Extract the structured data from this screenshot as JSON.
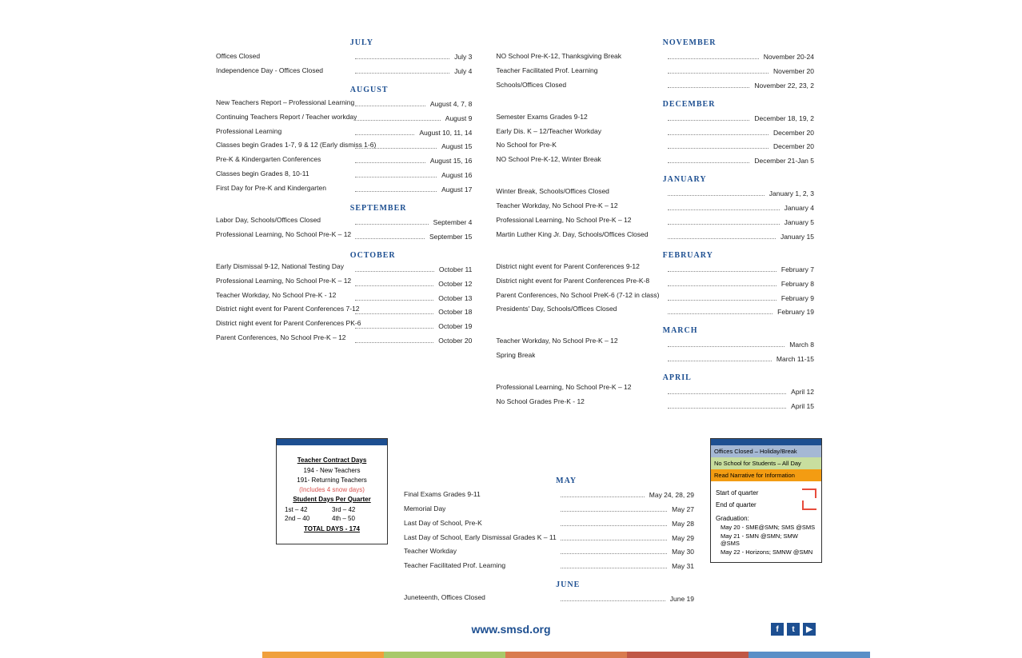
{
  "columns": [
    [
      {
        "type": "month",
        "label": "JULY"
      },
      {
        "type": "row",
        "desc": "Offices Closed",
        "date": "July 3"
      },
      {
        "type": "row",
        "desc": "Independence Day - Offices Closed",
        "date": "July 4"
      },
      {
        "type": "month",
        "label": "AUGUST"
      },
      {
        "type": "row",
        "desc": "New Teachers Report – Professional Learning",
        "date": "August 4, 7, 8"
      },
      {
        "type": "row",
        "desc": "Continuing Teachers Report / Teacher workday",
        "date": "August 9"
      },
      {
        "type": "row",
        "desc": "Professional Learning",
        "date": "August 10, 11, 14"
      },
      {
        "type": "row",
        "desc": "Classes begin Grades 1-7, 9 & 12 (Early dismiss 1-6)",
        "date": "August 15"
      },
      {
        "type": "row",
        "desc": "Pre-K & Kindergarten Conferences",
        "date": "August 15, 16"
      },
      {
        "type": "row",
        "desc": "Classes begin Grades 8, 10-11",
        "date": "August 16"
      },
      {
        "type": "row",
        "desc": "First Day for Pre-K and Kindergarten",
        "date": "August 17"
      },
      {
        "type": "month",
        "label": "SEPTEMBER"
      },
      {
        "type": "row",
        "desc": "Labor Day, Schools/Offices Closed",
        "date": "September 4"
      },
      {
        "type": "row",
        "desc": "Professional Learning, No School Pre-K – 12",
        "date": "September 15"
      },
      {
        "type": "month",
        "label": "OCTOBER"
      },
      {
        "type": "row",
        "desc": "Early Dismissal 9-12, National Testing Day",
        "date": "October 11"
      },
      {
        "type": "row",
        "desc": "Professional Learning, No School Pre-K – 12",
        "date": "October 12"
      },
      {
        "type": "row",
        "desc": "Teacher Workday, No School Pre-K - 12",
        "date": "October 13"
      },
      {
        "type": "row",
        "desc": "District night event for Parent Conferences 7-12",
        "date": "October 18"
      },
      {
        "type": "row",
        "desc": "District night event for Parent Conferences PK-6",
        "date": "October 19"
      },
      {
        "type": "row",
        "desc": "Parent Conferences, No School Pre-K – 12",
        "date": "October 20"
      }
    ],
    [
      {
        "type": "month",
        "label": "NOVEMBER"
      },
      {
        "type": "row",
        "desc": "NO School Pre-K-12, Thanksgiving Break",
        "date": "November 20-24"
      },
      {
        "type": "row",
        "desc": "Teacher Facilitated Prof. Learning",
        "date": "November 20"
      },
      {
        "type": "row",
        "desc": "Schools/Offices Closed",
        "date": "November 22, 23, 2"
      },
      {
        "type": "month",
        "label": "DECEMBER"
      },
      {
        "type": "row",
        "desc": "Semester Exams Grades 9-12",
        "date": "December 18, 19, 2"
      },
      {
        "type": "row",
        "desc": "Early Dis. K – 12/Teacher Workday",
        "date": "December 20"
      },
      {
        "type": "row",
        "desc": "No School for Pre-K",
        "date": "December 20"
      },
      {
        "type": "row",
        "desc": "NO School Pre-K-12, Winter Break",
        "date": "December 21-Jan 5"
      },
      {
        "type": "month",
        "label": "JANUARY"
      },
      {
        "type": "row",
        "desc": "Winter Break, Schools/Offices Closed",
        "date": "January 1, 2, 3"
      },
      {
        "type": "row",
        "desc": "Teacher Workday, No School Pre-K – 12",
        "date": "January 4"
      },
      {
        "type": "row",
        "desc": "Professional Learning, No School Pre-K – 12",
        "date": "January 5"
      },
      {
        "type": "row",
        "desc": "Martin Luther King Jr. Day, Schools/Offices Closed",
        "date": "January 15"
      },
      {
        "type": "month",
        "label": "FEBRUARY"
      },
      {
        "type": "row",
        "desc": "District night event for Parent Conferences 9-12",
        "date": "February 7"
      },
      {
        "type": "row",
        "desc": "District night event for Parent Conferences Pre-K-8",
        "date": "February 8"
      },
      {
        "type": "row",
        "desc": "Parent Conferences, No School PreK-6 (7-12 in class)",
        "date": "February 9"
      },
      {
        "type": "row",
        "desc": "Presidents' Day, Schools/Offices Closed",
        "date": "February 19"
      },
      {
        "type": "month",
        "label": "MARCH"
      },
      {
        "type": "row",
        "desc": "Teacher Workday, No School Pre-K – 12",
        "date": "March 8"
      },
      {
        "type": "row",
        "desc": "Spring Break",
        "date": "March 11-15"
      },
      {
        "type": "month",
        "label": "APRIL"
      },
      {
        "type": "row",
        "desc": "Professional Learning, No School Pre-K – 12",
        "date": "April 12"
      },
      {
        "type": "row",
        "desc": "No School Grades Pre-K - 12",
        "date": "April 15"
      }
    ]
  ],
  "may_june": [
    {
      "type": "month",
      "label": "MAY"
    },
    {
      "type": "row",
      "desc": "Final Exams Grades 9-11",
      "date": "May 24, 28, 29"
    },
    {
      "type": "row",
      "desc": "Memorial Day",
      "date": "May 27"
    },
    {
      "type": "row",
      "desc": "Last Day of School, Pre-K",
      "date": "May 28"
    },
    {
      "type": "row",
      "desc": "Last Day of School, Early Dismissal Grades K – 11",
      "date": "May 29"
    },
    {
      "type": "row",
      "desc": "Teacher Workday",
      "date": "May 30"
    },
    {
      "type": "row",
      "desc": "Teacher Facilitated Prof. Learning",
      "date": "May 31"
    },
    {
      "type": "month",
      "label": "JUNE"
    },
    {
      "type": "row",
      "desc": "Juneteenth, Offices Closed",
      "date": "June 19"
    }
  ],
  "contract": {
    "title": "Teacher Contract Days",
    "new_teachers": "194 - New Teachers",
    "returning": "191- Returning Teachers",
    "snow": "(Includes 4 snow days)",
    "student_title": "Student Days Per Quarter",
    "q1": "1st – 42",
    "q3": "3rd – 42",
    "q2": "2nd – 40",
    "q4": "4th – 50",
    "total": "TOTAL DAYS - 174"
  },
  "legend": {
    "closed": "Offices Closed – Holiday/Break",
    "no_school": "No School for Students – All Day",
    "narrative": "Read Narrative for Information",
    "start": "Start of quarter",
    "end": "End of quarter",
    "grad_title": "Graduation:",
    "grad1": "May 20 - SME@SMN; SMS @SMS",
    "grad2": "May 21 - SMN @SMN; SMW @SMS",
    "grad3": "May 22 - Horizons; SMNW @SMN"
  },
  "url": "www.smsd.org",
  "stripe_colors": [
    "#f0a03c",
    "#a8c96a",
    "#d97b4e",
    "#c05746",
    "#5a8fc7"
  ],
  "social": [
    "f",
    "t",
    "▶"
  ]
}
